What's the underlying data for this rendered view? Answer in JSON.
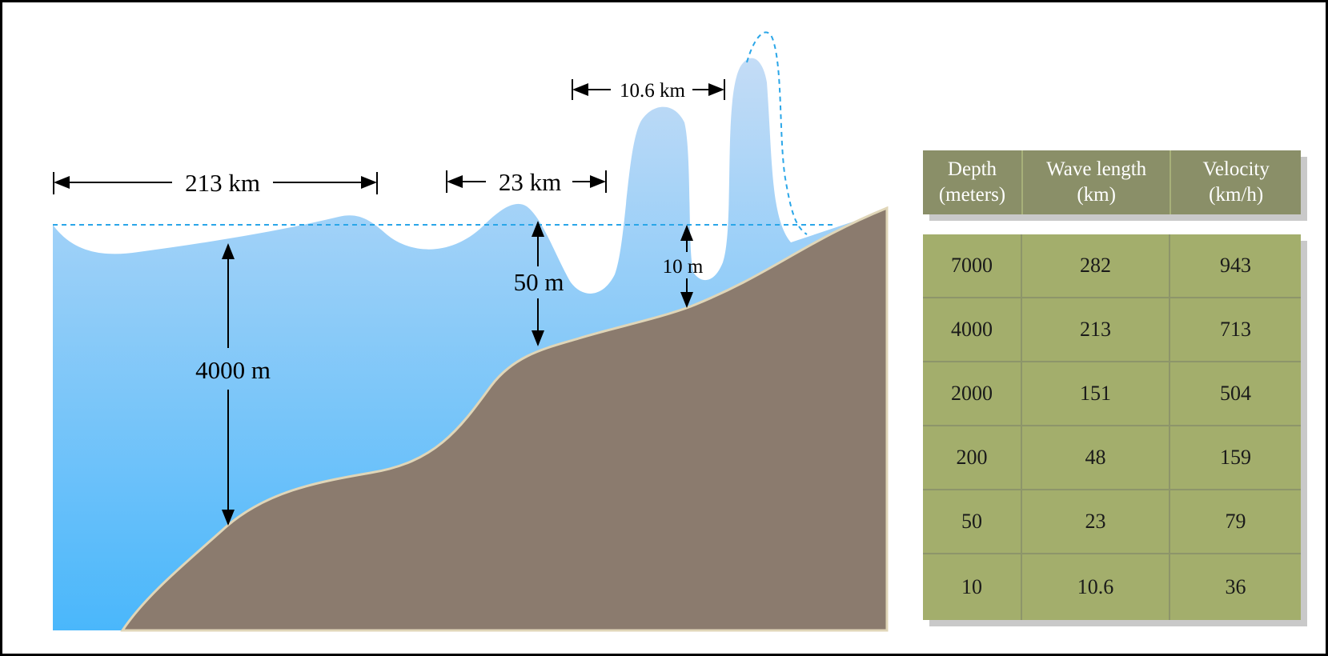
{
  "labels": {
    "wavelength_deep": "213 km",
    "wavelength_mid": "23 km",
    "wavelength_shallow": "10.6 km",
    "depth_deep": "4000 m",
    "depth_mid": "50 m",
    "depth_shallow": "10 m"
  },
  "table": {
    "headers": [
      [
        "Depth",
        "(meters)"
      ],
      [
        "Wave length",
        "(km)"
      ],
      [
        "Velocity",
        "(km/h)"
      ]
    ],
    "rows": [
      [
        "7000",
        "282",
        "943"
      ],
      [
        "4000",
        "213",
        "713"
      ],
      [
        "2000",
        "151",
        "504"
      ],
      [
        "200",
        "48",
        "159"
      ],
      [
        "50",
        "23",
        "79"
      ],
      [
        "10",
        "10.6",
        "36"
      ]
    ]
  },
  "colors": {
    "water_top": "#c4dcf6",
    "water_bottom": "#4ab7fb",
    "seabed": "#8b7b6e",
    "seabed_edge": "#e0d6b8",
    "sea_level_line": "#2aa6e8",
    "header_bg": "#8a8f68",
    "body_bg": "#a3ae6c"
  }
}
